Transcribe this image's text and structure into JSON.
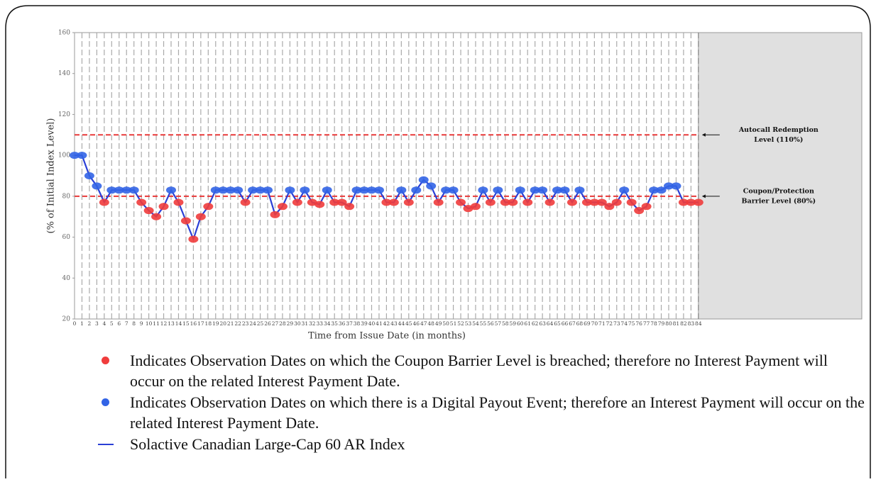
{
  "chart_data": {
    "type": "line",
    "y_label": "(% of Initial Index Level)",
    "x_label": "Time from Issue Date (in months)",
    "x": [
      0,
      1,
      2,
      3,
      4,
      5,
      6,
      7,
      8,
      9,
      10,
      11,
      12,
      13,
      14,
      15,
      16,
      17,
      18,
      19,
      20,
      21,
      22,
      23,
      24,
      25,
      26,
      27,
      28,
      29,
      30,
      31,
      32,
      33,
      34,
      35,
      36,
      37,
      38,
      39,
      40,
      41,
      42,
      43,
      44,
      45,
      46,
      47,
      48,
      49,
      50,
      51,
      52,
      53,
      54,
      55,
      56,
      57,
      58,
      59,
      60,
      61,
      62,
      63,
      64,
      65,
      66,
      67,
      68,
      69,
      70,
      71,
      72,
      73,
      74,
      75,
      76,
      77,
      78,
      79,
      80,
      81,
      82,
      83,
      84
    ],
    "series": [
      {
        "name": "Solactive Canadian Large-Cap 60 AR Index",
        "color": "#2a3fd6",
        "values": [
          100,
          100,
          90,
          85,
          77,
          83,
          83,
          83,
          83,
          77,
          73,
          70,
          75,
          83,
          77,
          68,
          59,
          70,
          75,
          83,
          83,
          83,
          83,
          77,
          83,
          83,
          83,
          71,
          75,
          83,
          77,
          83,
          77,
          76,
          83,
          77,
          77,
          75,
          83,
          83,
          83,
          83,
          77,
          77,
          83,
          77,
          83,
          88,
          85,
          77,
          83,
          83,
          77,
          74,
          75,
          83,
          77,
          83,
          77,
          77,
          83,
          77,
          83,
          83,
          77,
          83,
          83,
          77,
          83,
          77,
          77,
          77,
          75,
          77,
          83,
          77,
          73,
          75,
          83,
          83,
          85,
          85,
          77,
          77,
          77
        ]
      }
    ],
    "xlim": [
      0,
      106
    ],
    "xticks": [
      0,
      1,
      2,
      3,
      4,
      5,
      6,
      7,
      8,
      9,
      10,
      11,
      12,
      13,
      14,
      15,
      16,
      17,
      18,
      19,
      20,
      21,
      22,
      23,
      24,
      25,
      26,
      27,
      28,
      29,
      30,
      31,
      32,
      33,
      34,
      35,
      36,
      37,
      38,
      39,
      40,
      41,
      42,
      43,
      44,
      45,
      46,
      47,
      48,
      49,
      50,
      51,
      52,
      53,
      54,
      55,
      56,
      57,
      58,
      59,
      60,
      61,
      62,
      63,
      64,
      65,
      66,
      67,
      68,
      69,
      70,
      71,
      72,
      73,
      74,
      75,
      76,
      77,
      78,
      79,
      80,
      81,
      82,
      83,
      84
    ],
    "ylim": [
      20,
      160
    ],
    "yticks": [
      20,
      40,
      60,
      80,
      100,
      120,
      140,
      160
    ],
    "grid": true,
    "reference_lines": [
      {
        "value": 110,
        "color": "#e83a3a",
        "label": [
          "Autocall Redemption",
          "Level (110%)"
        ]
      },
      {
        "value": 80,
        "color": "#e83a3a",
        "label": [
          "Coupon/Protection",
          "Barrier Level (80%)"
        ]
      }
    ],
    "marker_colors": {
      "breach": "#f03c3c",
      "payout": "#3264e6"
    },
    "notes": [
      {
        "color": "#f03c3c",
        "text": "Indicates Observation Dates on which the Coupon Barrier Level is breached; therefore no Interest Payment will occur on the related Interest Payment Date."
      },
      {
        "color": "#3264e6",
        "text": "Indicates Observation Dates on which there is a Digital Payout Event; therefore an Interest Payment will occur on the related Interest Payment Date."
      }
    ]
  }
}
